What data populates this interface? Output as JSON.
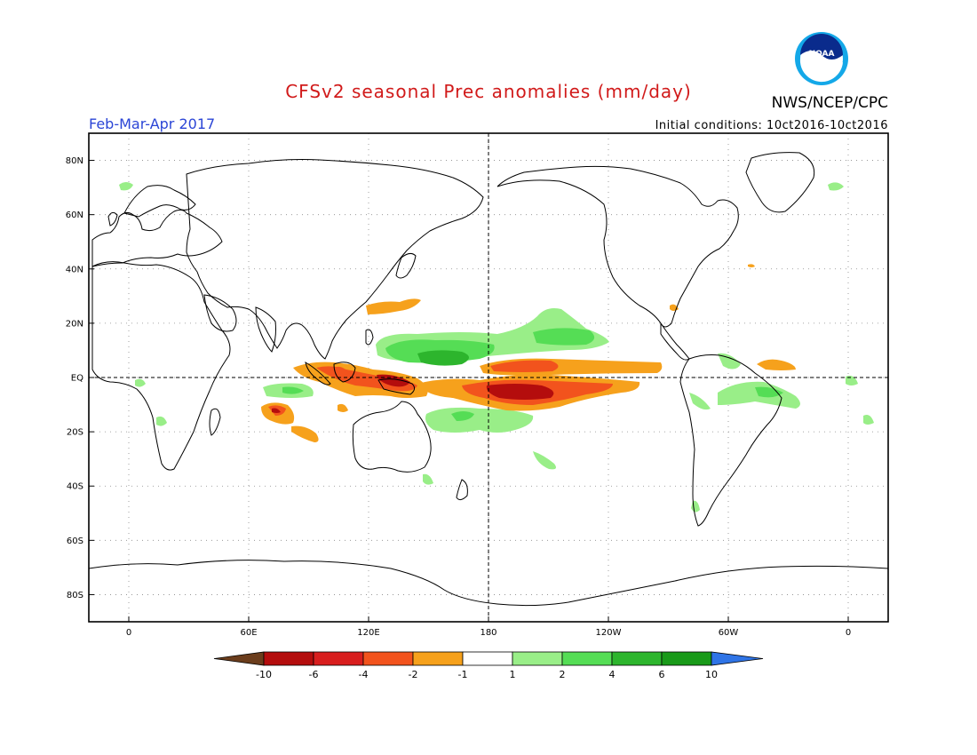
{
  "title": "CFSv2 seasonal Prec anomalies (mm/day)",
  "agency": "NWS/NCEP/CPC",
  "logo_text": "NOAA",
  "season": "Feb-Mar-Apr 2017",
  "initial_conditions": "Initial conditions: 10ct2016-10ct2016",
  "map": {
    "lon_range": [
      -20,
      380
    ],
    "lat_range": [
      -90,
      90
    ],
    "lat_ticks": [
      {
        "lat": 80,
        "label": "80N"
      },
      {
        "lat": 60,
        "label": "60N"
      },
      {
        "lat": 40,
        "label": "40N"
      },
      {
        "lat": 20,
        "label": "20N"
      },
      {
        "lat": 0,
        "label": "EQ"
      },
      {
        "lat": -20,
        "label": "20S"
      },
      {
        "lat": -40,
        "label": "40S"
      },
      {
        "lat": -60,
        "label": "60S"
      },
      {
        "lat": -80,
        "label": "80S"
      }
    ],
    "lon_ticks": [
      {
        "lon": 0,
        "label": "0"
      },
      {
        "lon": 60,
        "label": "60E"
      },
      {
        "lon": 120,
        "label": "120E"
      },
      {
        "lon": 180,
        "label": "180"
      },
      {
        "lon": 240,
        "label": "120W"
      },
      {
        "lon": 300,
        "label": "60W"
      },
      {
        "lon": 360,
        "label": "0"
      }
    ],
    "grid": true,
    "dashed_reference_lines": [
      "EQ",
      "180"
    ]
  },
  "colorbar": {
    "labels": [
      "-10",
      "-6",
      "-4",
      "-2",
      "-1",
      "1",
      "2",
      "4",
      "6",
      "10"
    ],
    "colors": [
      "#6b3d1c",
      "#b40d0d",
      "#d81e1e",
      "#f2531d",
      "#f6a11c",
      "#ffffff",
      "#99ee88",
      "#55dd55",
      "#2db52d",
      "#199a19",
      "#2f74e6"
    ]
  },
  "anomalies": {
    "wet_colors": {
      "light": "#99ee88",
      "medium": "#55dd55",
      "strong": "#2db52d"
    },
    "dry_colors": {
      "light": "#f6a11c",
      "medium": "#f2531d",
      "strong": "#b40d0d"
    }
  }
}
